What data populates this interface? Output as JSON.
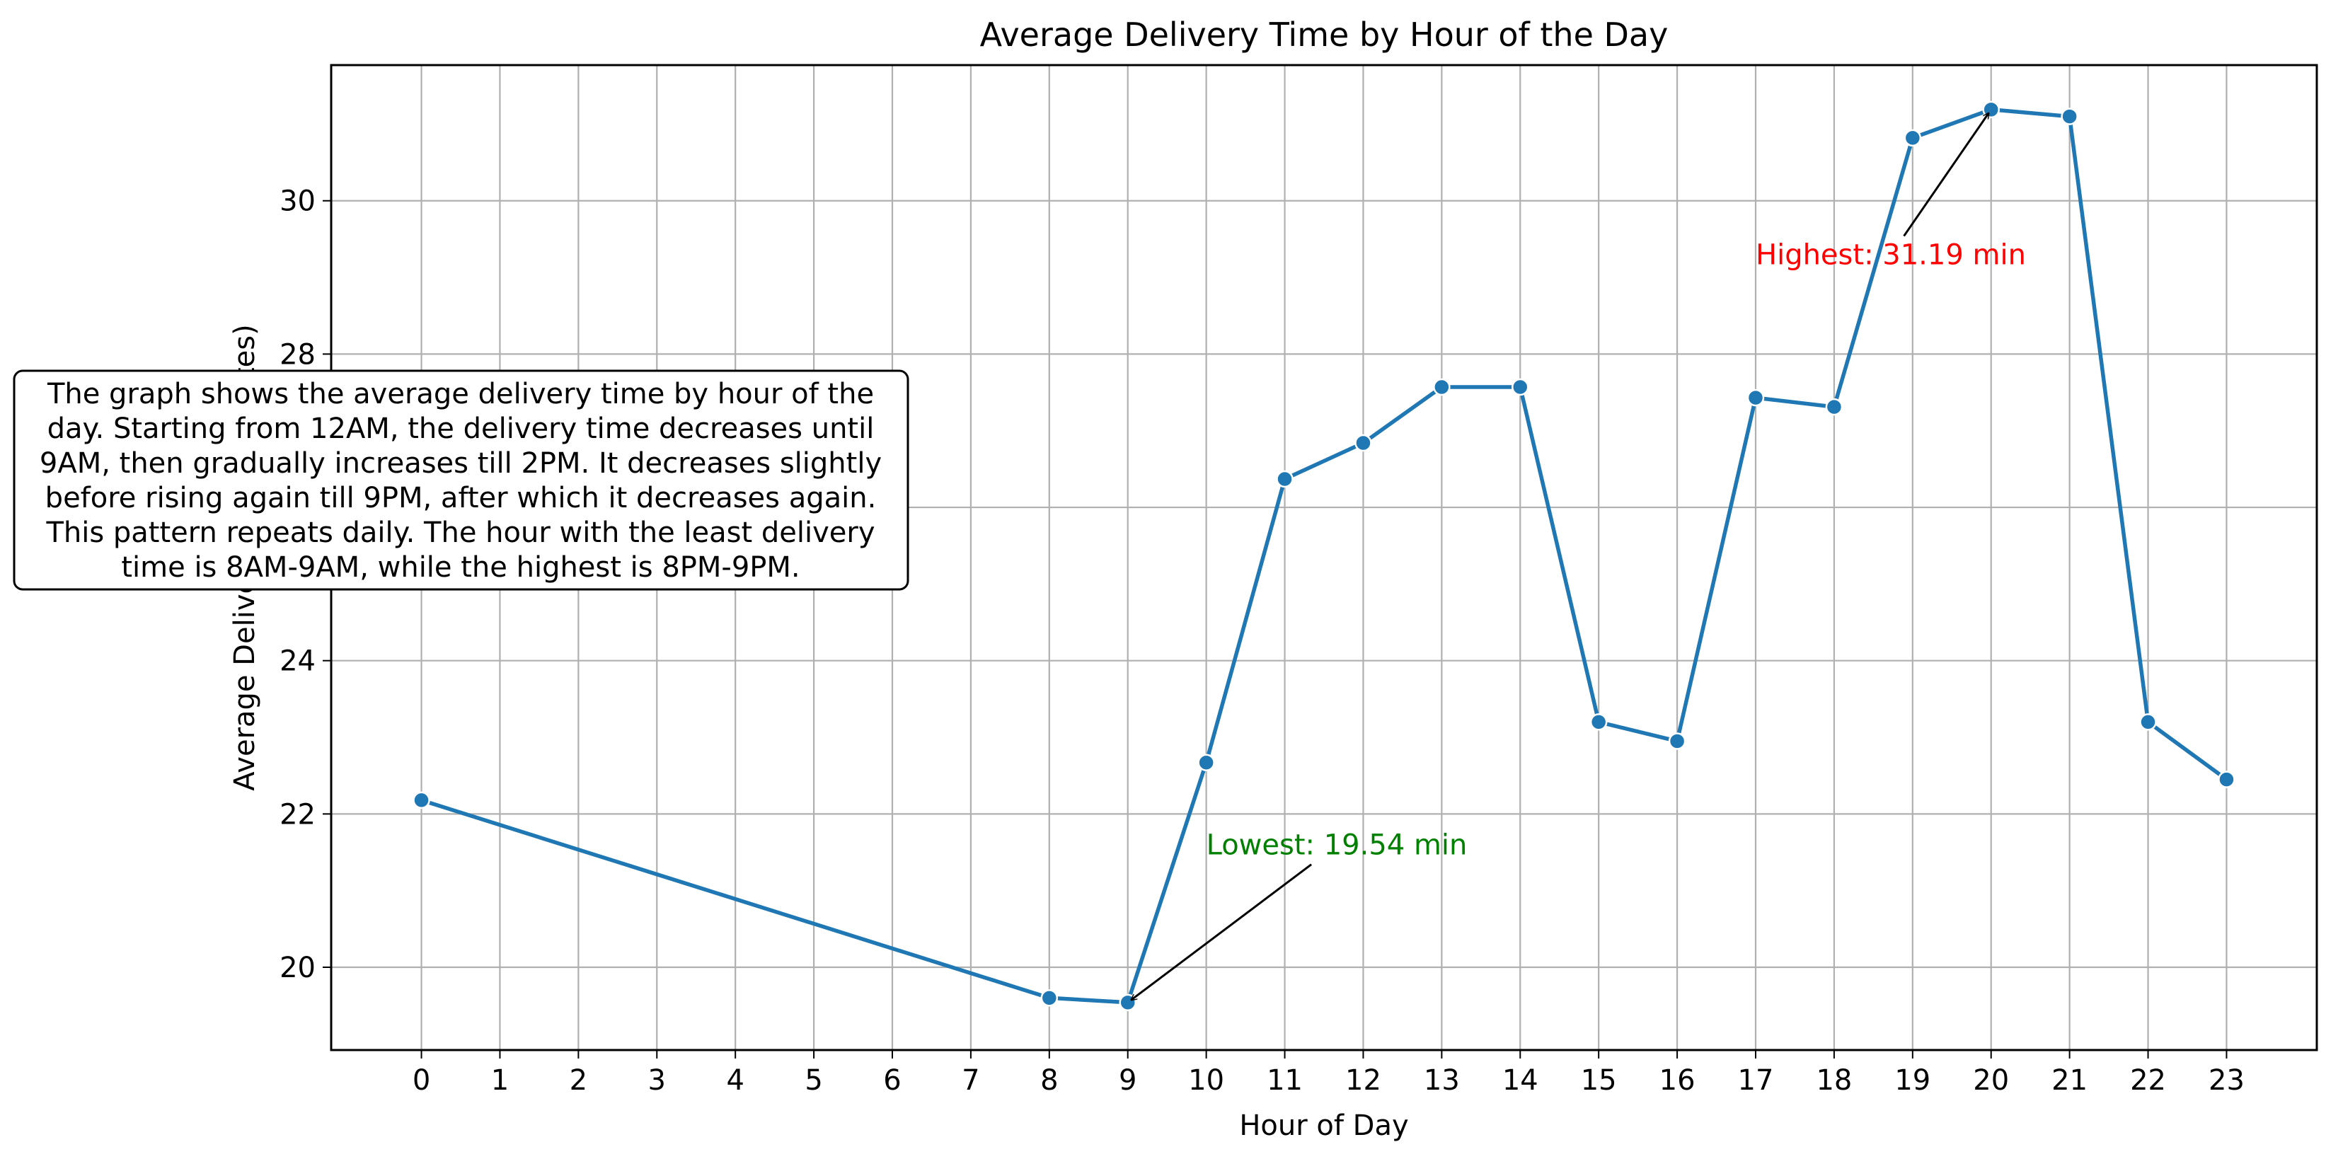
{
  "chart_data": {
    "type": "line",
    "title": "Average Delivery Time by Hour of the Day",
    "xlabel": "Hour of Day",
    "ylabel": "Average Delivery Time (minutes)",
    "x": [
      0,
      8,
      9,
      10,
      11,
      12,
      13,
      14,
      15,
      16,
      17,
      18,
      19,
      20,
      21,
      22,
      23
    ],
    "values": [
      22.18,
      19.6,
      19.54,
      22.67,
      26.37,
      26.84,
      27.57,
      27.57,
      23.2,
      22.95,
      27.43,
      27.31,
      30.82,
      31.19,
      31.1,
      23.2,
      22.45
    ],
    "x_ticks": [
      "0",
      "1",
      "2",
      "3",
      "4",
      "5",
      "6",
      "7",
      "8",
      "9",
      "10",
      "11",
      "12",
      "13",
      "14",
      "15",
      "16",
      "17",
      "18",
      "19",
      "20",
      "21",
      "22",
      "23"
    ],
    "y_ticks": [
      "20",
      "22",
      "24",
      "26",
      "28",
      "30"
    ],
    "xlim": [
      -1.15,
      24.15
    ],
    "ylim": [
      18.92,
      31.77
    ],
    "grid": true,
    "line_color": "#1f77b4",
    "annotations": [
      {
        "label": "Lowest: 19.54 min",
        "color": "#008000",
        "point_x": 9,
        "point_y": 19.54,
        "text_x": 10,
        "text_y": 21.6
      },
      {
        "label": "Highest: 31.19 min",
        "color": "#ff0000",
        "point_x": 20,
        "point_y": 31.19,
        "text_x": 17,
        "text_y": 29.3
      }
    ],
    "note_lines": [
      "The graph shows the average delivery time by hour of the",
      "day. Starting from 12AM, the delivery time decreases until",
      "9AM, then gradually increases till 2PM. It decreases slightly",
      "before rising again till 9PM, after which it decreases again.",
      "This pattern repeats daily. The hour with the least delivery",
      "time is 8AM-9AM, while the highest is 8PM-9PM."
    ]
  }
}
